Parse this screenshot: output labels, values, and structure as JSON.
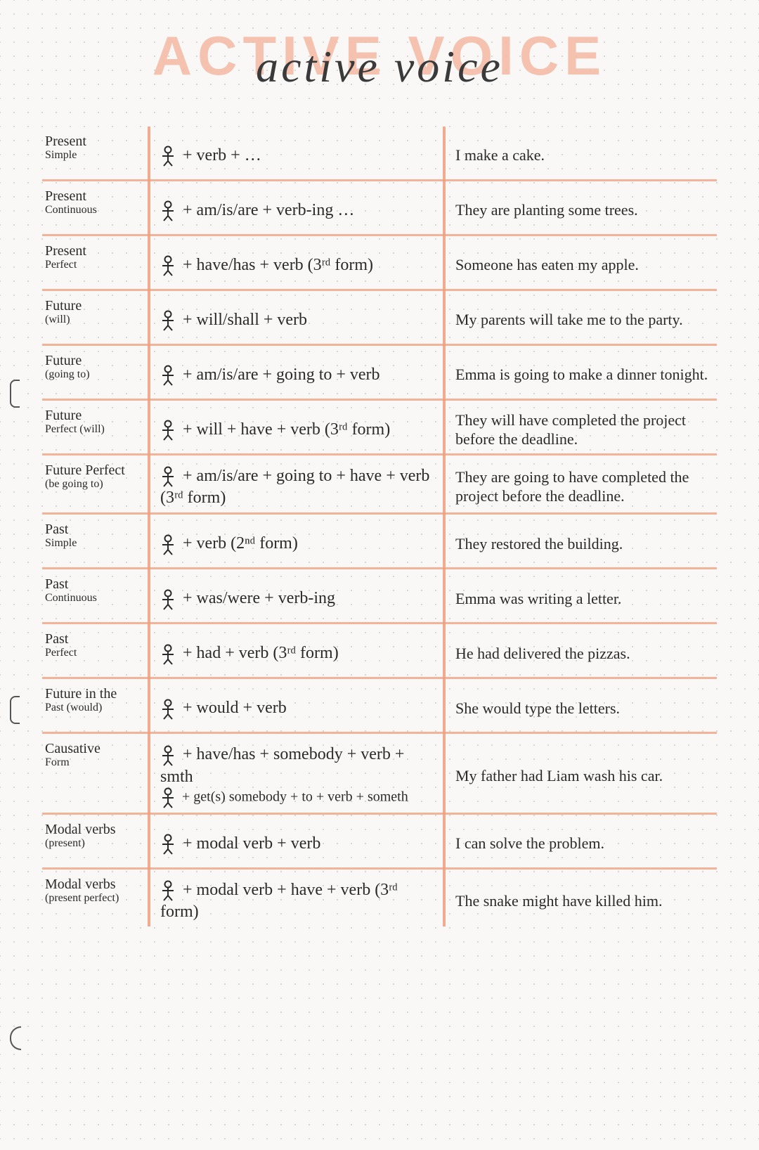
{
  "title_block": "ACTIVE VOICE",
  "title_script": "active voice",
  "person_glyph": "☿",
  "colors": {
    "highlight": "#f3b29a",
    "vline": "#ef9d7d",
    "ink": "#2a2a2a",
    "paper": "#faf8f6",
    "dot": "#d0cec9"
  },
  "rows": [
    {
      "tense": "Present",
      "tense_sub": "Simple",
      "formula": "+ verb + …",
      "example": "I make a cake."
    },
    {
      "tense": "Present",
      "tense_sub": "Continuous",
      "formula": "+ am/is/are + verb-ing …",
      "example": "They are planting some trees."
    },
    {
      "tense": "Present",
      "tense_sub": "Perfect",
      "formula": "+ have/has + verb (3ʳᵈ form)",
      "example": "Someone has eaten my apple."
    },
    {
      "tense": "Future",
      "tense_sub": "(will)",
      "formula": "+ will/shall + verb",
      "example": "My parents will take me to the party."
    },
    {
      "tense": "Future",
      "tense_sub": "(going to)",
      "formula": "+ am/is/are + going to + verb",
      "example": "Emma is going to make a dinner tonight."
    },
    {
      "tense": "Future",
      "tense_sub": "Perfect (will)",
      "formula": "+ will + have + verb (3ʳᵈ form)",
      "example": "They will have completed the project before the deadline."
    },
    {
      "tense": "Future Perfect",
      "tense_sub": "(be going to)",
      "formula": "+ am/is/are + going to + have + verb (3ʳᵈ form)",
      "example": "They are going to have completed the project before the deadline."
    },
    {
      "tense": "Past",
      "tense_sub": "Simple",
      "formula": "+ verb (2ⁿᵈ form)",
      "example": "They restored the building."
    },
    {
      "tense": "Past",
      "tense_sub": "Continuous",
      "formula": "+ was/were + verb-ing",
      "example": "Emma was writing a letter."
    },
    {
      "tense": "Past",
      "tense_sub": "Perfect",
      "formula": "+ had + verb (3ʳᵈ form)",
      "example": "He had delivered the pizzas."
    },
    {
      "tense": "Future in the",
      "tense_sub": "Past (would)",
      "formula": "+ would + verb",
      "example": "She would type the letters."
    },
    {
      "tense": "Causative",
      "tense_sub": "Form",
      "formula": "+ have/has + somebody + verb + smth",
      "formula2": "+ get(s) somebody + to + verb + someth",
      "example": "My father had Liam wash his car."
    },
    {
      "tense": "Modal verbs",
      "tense_sub": "(present)",
      "formula": "+ modal verb + verb",
      "example": "I can solve the problem."
    },
    {
      "tense": "Modal verbs",
      "tense_sub": "(present perfect)",
      "formula": "+ modal verb + have + verb (3ʳᵈ form)",
      "example": "The snake might have killed him."
    }
  ]
}
